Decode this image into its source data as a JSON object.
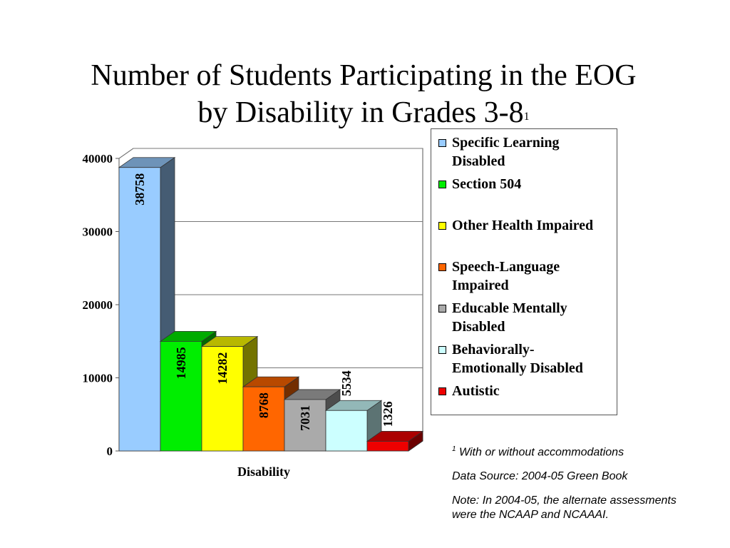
{
  "title": {
    "line1": "Number of Students Participating in the EOG",
    "line2": "by Disability in Grades 3-8",
    "superscript": "1"
  },
  "chart_data": {
    "type": "bar",
    "title": "Number of Students Participating in the EOG by Disability in Grades 3-8",
    "xlabel": "Disability",
    "ylabel": "",
    "ylim": [
      0,
      40000
    ],
    "yticks": [
      0,
      10000,
      20000,
      30000,
      40000
    ],
    "grid": true,
    "legend_position": "right",
    "three_d": true,
    "series": [
      {
        "name": "Specific Learning Disabled",
        "value": 38758,
        "color": "#99ccff"
      },
      {
        "name": "Section 504",
        "value": 14985,
        "color": "#00ee00"
      },
      {
        "name": "Other Health Impaired",
        "value": 14282,
        "color": "#ffff00"
      },
      {
        "name": "Speech-Language Impaired",
        "value": 8768,
        "color": "#ff6600"
      },
      {
        "name": "Educable Mentally Disabled",
        "value": 7031,
        "color": "#aaaaaa"
      },
      {
        "name": "Behaviorally-Emotionally Disabled",
        "value": 5534,
        "color": "#ccffff"
      },
      {
        "name": "Autistic",
        "value": 1326,
        "color": "#ee0000"
      }
    ]
  },
  "legend": [
    {
      "label_lines": [
        "Specific Learning",
        "Disabled"
      ]
    },
    {
      "label_lines": [
        "Section 504"
      ]
    },
    {
      "label_lines": [
        "Other Health Impaired"
      ]
    },
    {
      "label_lines": [
        "Speech-Language",
        "Impaired"
      ]
    },
    {
      "label_lines": [
        "Educable Mentally",
        "Disabled"
      ]
    },
    {
      "label_lines": [
        "Behaviorally-",
        "Emotionally Disabled"
      ]
    },
    {
      "label_lines": [
        "Autistic"
      ]
    }
  ],
  "notes": {
    "footnote_mark": "1",
    "footnote_text": " With or without accommodations",
    "source": "Data Source: 2004-05 Green Book",
    "note": "Note: In 2004-05, the alternate assessments were the NCAAP and NCAAAI."
  }
}
